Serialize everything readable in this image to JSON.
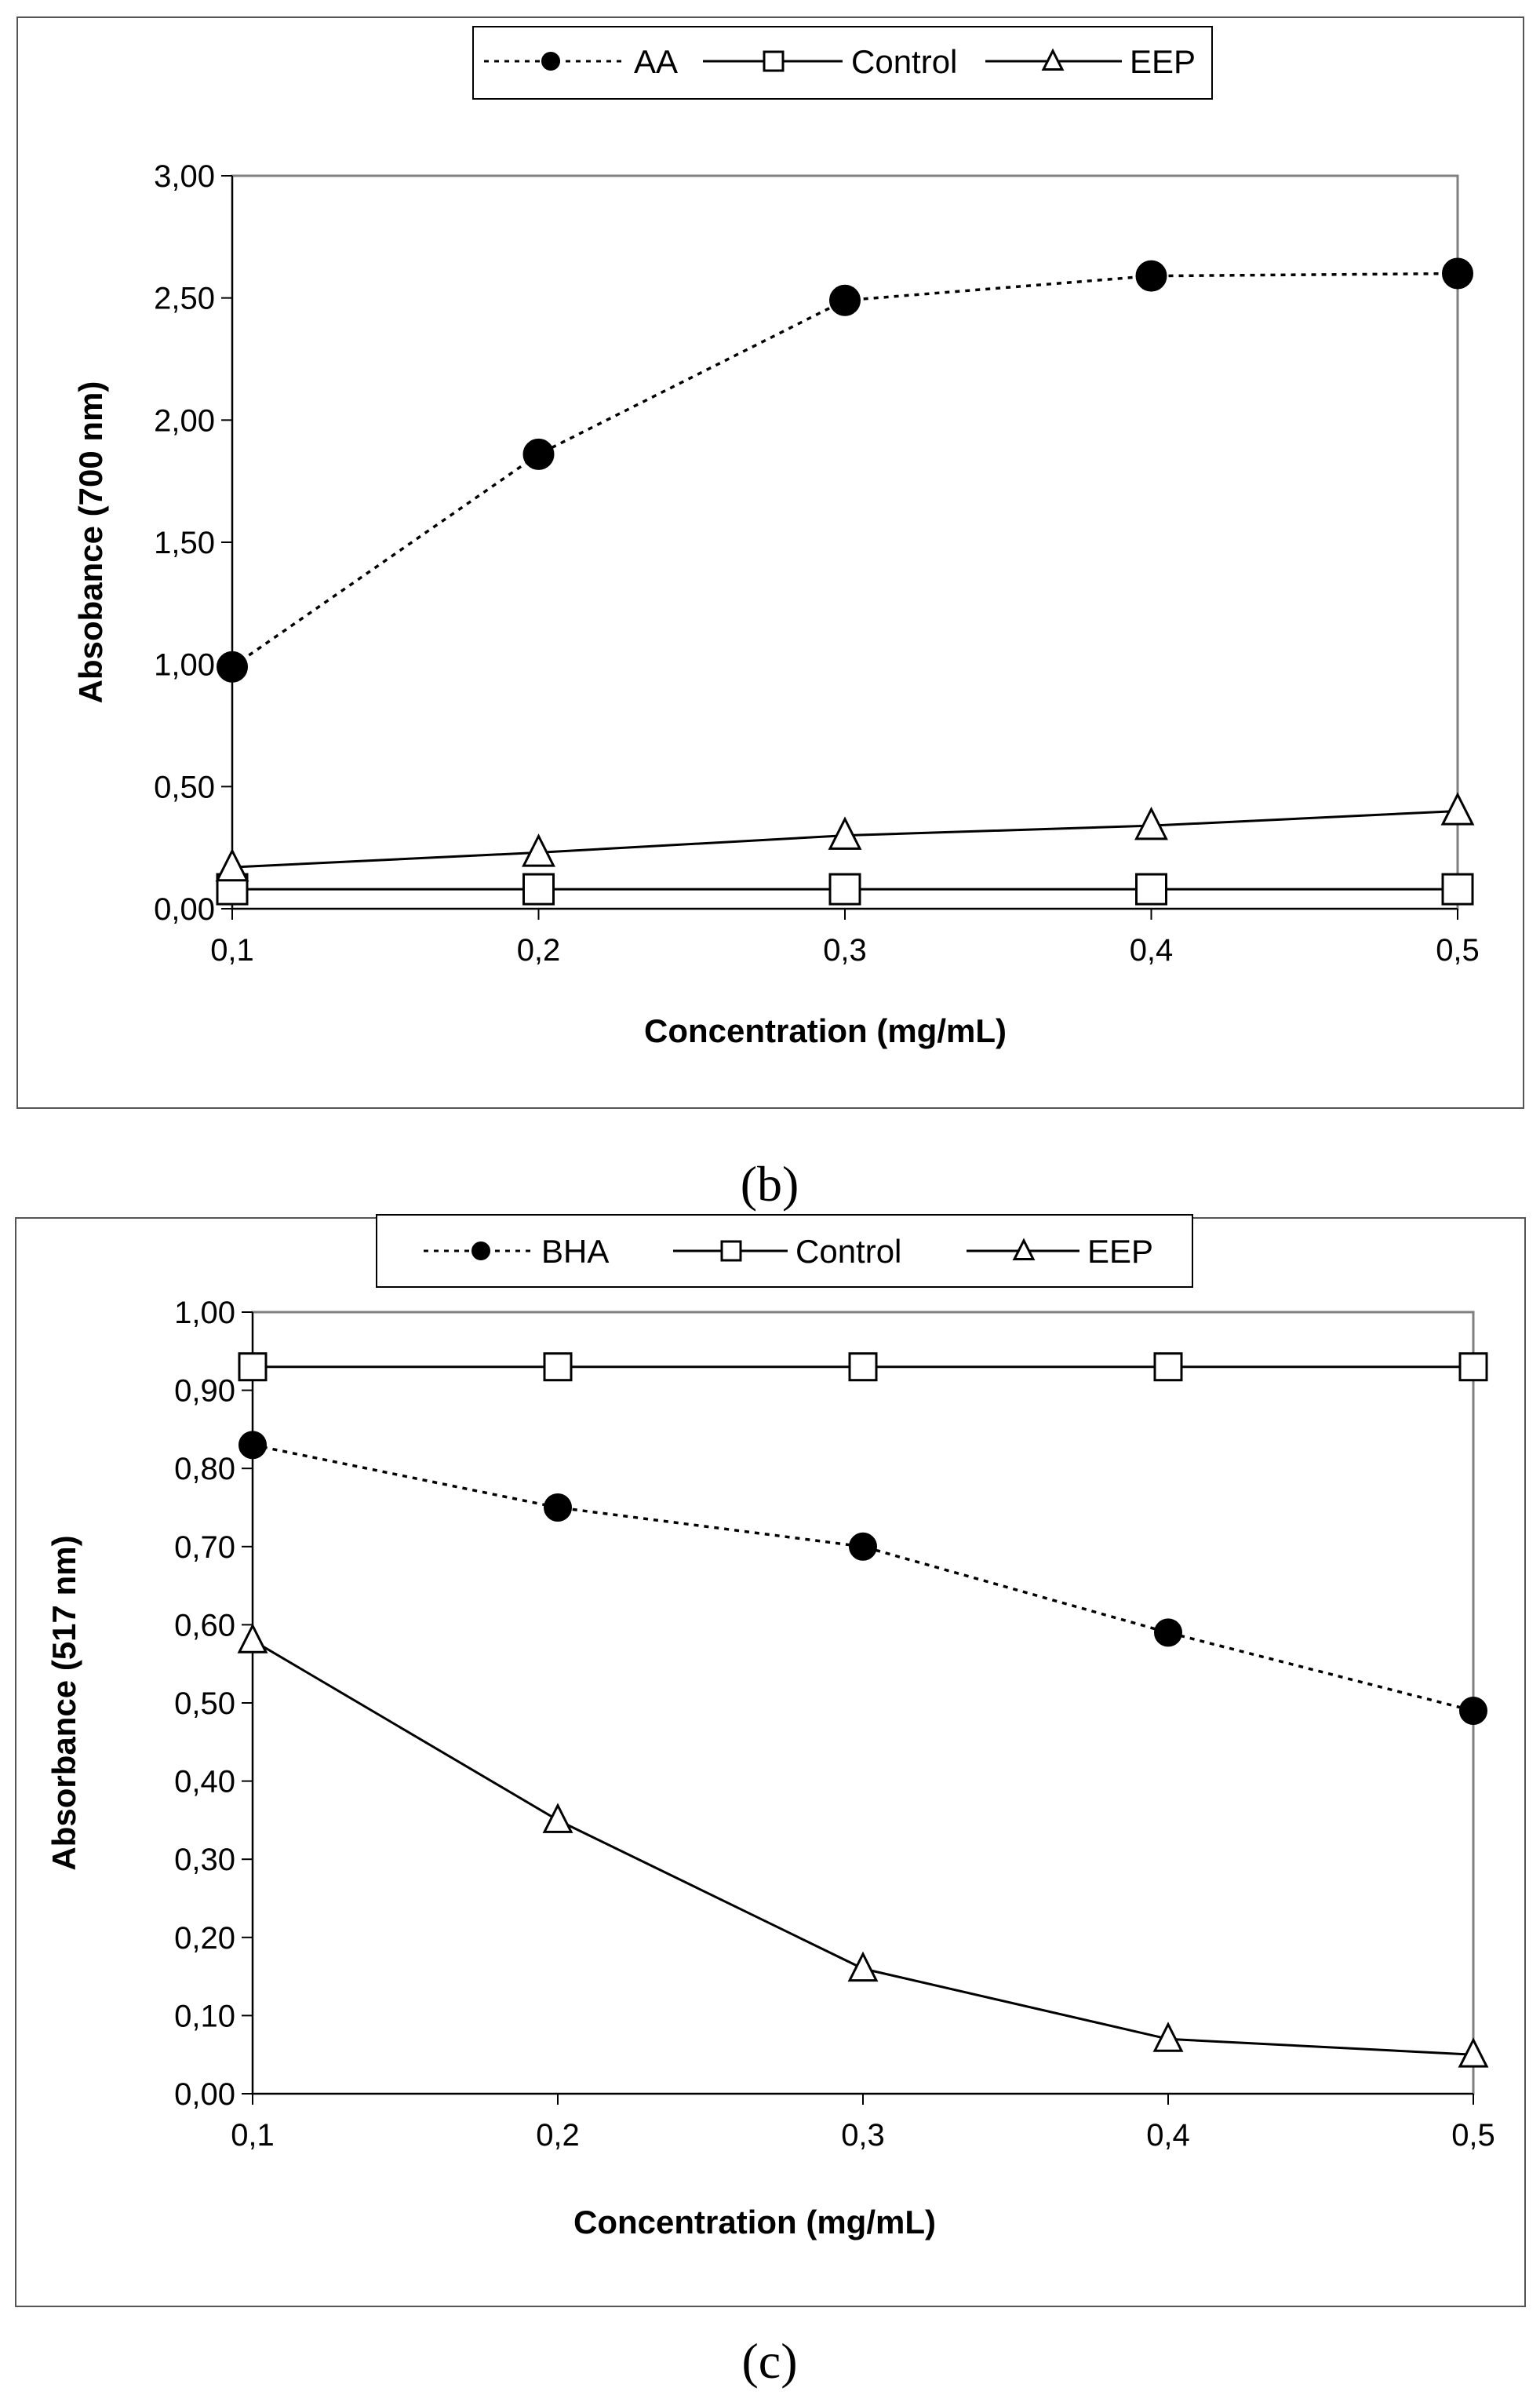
{
  "chart_data": [
    {
      "type": "line",
      "panel_label": "b",
      "title": "",
      "xlabel": "Concentration (mg/mL)",
      "ylabel": "Absobance (700 nm)",
      "categories": [
        "0,1",
        "0,2",
        "0,3",
        "0,4",
        "0,5"
      ],
      "x": [
        0.1,
        0.2,
        0.3,
        0.4,
        0.5
      ],
      "ylim": [
        0,
        3
      ],
      "yticks": [
        0,
        0.5,
        1,
        1.5,
        2,
        2.5,
        3
      ],
      "ytick_labels": [
        "0,00",
        "0,50",
        "1,00",
        "1,50",
        "2,00",
        "2,50",
        "3,00"
      ],
      "legend_position": "top-center",
      "series": [
        {
          "name": "AA",
          "marker": "filled-circle",
          "line": "dashed",
          "values": [
            0.99,
            1.86,
            2.49,
            2.59,
            2.6
          ]
        },
        {
          "name": "Control",
          "marker": "open-square",
          "line": "solid",
          "values": [
            0.08,
            0.08,
            0.08,
            0.08,
            0.08
          ]
        },
        {
          "name": "EEP",
          "marker": "open-triangle",
          "line": "solid",
          "values": [
            0.17,
            0.23,
            0.3,
            0.34,
            0.4
          ]
        }
      ]
    },
    {
      "type": "line",
      "panel_label": "c",
      "title": "",
      "xlabel": "Concentration (mg/mL)",
      "ylabel": "Absorbance (517 nm)",
      "categories": [
        "0,1",
        "0,2",
        "0,3",
        "0,4",
        "0,5"
      ],
      "x": [
        0.1,
        0.2,
        0.3,
        0.4,
        0.5
      ],
      "ylim": [
        0,
        1
      ],
      "yticks": [
        0,
        0.1,
        0.2,
        0.3,
        0.4,
        0.5,
        0.6,
        0.7,
        0.8,
        0.9,
        1.0
      ],
      "ytick_labels": [
        "0,00",
        "0,10",
        "0,20",
        "0,30",
        "0,40",
        "0,50",
        "0,60",
        "0,70",
        "0,80",
        "0,90",
        "1,00"
      ],
      "legend_position": "top-center",
      "series": [
        {
          "name": "BHA",
          "marker": "filled-circle",
          "line": "dashed",
          "values": [
            0.83,
            0.75,
            0.7,
            0.59,
            0.49
          ]
        },
        {
          "name": "Control",
          "marker": "open-square",
          "line": "solid",
          "values": [
            0.93,
            0.93,
            0.93,
            0.93,
            0.93
          ]
        },
        {
          "name": "EEP",
          "marker": "open-triangle",
          "line": "solid",
          "values": [
            0.58,
            0.35,
            0.16,
            0.07,
            0.05
          ]
        }
      ]
    }
  ],
  "captions": [
    "(b)",
    "(c)"
  ]
}
